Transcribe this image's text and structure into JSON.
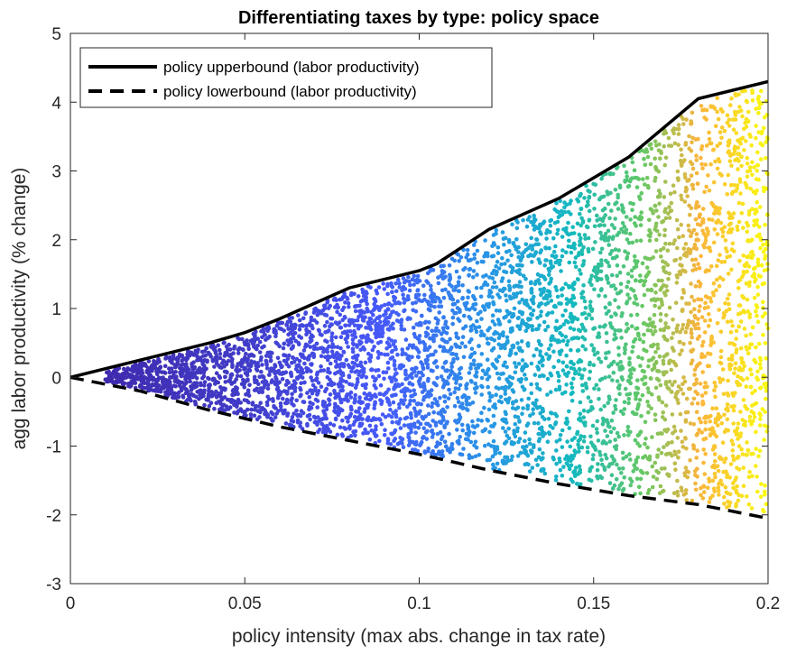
{
  "chart_data": {
    "type": "scatter",
    "title": "Differentiating taxes by type: policy space",
    "xlabel": "policy intensity (max abs. change in tax rate)",
    "ylabel": "agg labor productivity (% change)",
    "xlim": [
      0,
      0.2
    ],
    "ylim": [
      -3,
      5
    ],
    "xticks": [
      0,
      0.05,
      0.1,
      0.15,
      0.2
    ],
    "xtick_labels": [
      "0",
      "0.05",
      "0.1",
      "0.15",
      "0.2"
    ],
    "yticks": [
      -3,
      -2,
      -1,
      0,
      1,
      2,
      3,
      4,
      5
    ],
    "ytick_labels": [
      "-3",
      "-2",
      "-1",
      "0",
      "1",
      "2",
      "3",
      "4",
      "5"
    ],
    "grid": false,
    "legend_position": "top-left",
    "colormap": "parula (color by policy intensity)",
    "series": [
      {
        "name": "policy upperbound (labor productivity)",
        "style": "solid",
        "color": "#000000",
        "x": [
          0,
          0.02,
          0.04,
          0.05,
          0.06,
          0.08,
          0.1,
          0.105,
          0.12,
          0.14,
          0.16,
          0.18,
          0.2
        ],
        "y": [
          0,
          0.25,
          0.5,
          0.65,
          0.85,
          1.3,
          1.55,
          1.65,
          2.15,
          2.6,
          3.2,
          4.05,
          4.3
        ]
      },
      {
        "name": "policy lowerbound (labor productivity)",
        "style": "dashed",
        "color": "#000000",
        "x": [
          0,
          0.02,
          0.04,
          0.06,
          0.08,
          0.1,
          0.12,
          0.14,
          0.16,
          0.18,
          0.2
        ],
        "y": [
          0,
          -0.2,
          -0.48,
          -0.72,
          -0.92,
          -1.12,
          -1.35,
          -1.55,
          -1.72,
          -1.85,
          -2.05
        ]
      }
    ],
    "scatter": {
      "description": "dense policy draws filling region between bounds",
      "x_range": [
        0.01,
        0.2
      ],
      "color_by": "x"
    }
  }
}
